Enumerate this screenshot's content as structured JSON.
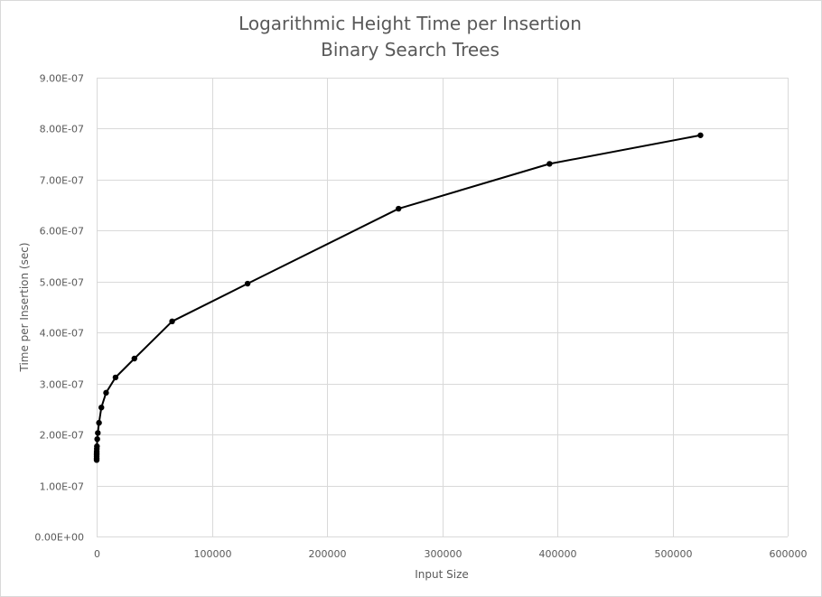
{
  "chart_data": {
    "type": "scatter",
    "title": "Logarithmic Height Time per Insertion",
    "subtitle": "Binary Search Trees",
    "xlabel": "Input Size",
    "ylabel": "Time per Insertion (sec)",
    "xlim": [
      0,
      600000
    ],
    "ylim": [
      0,
      9e-07
    ],
    "x_ticks": [
      {
        "value": 0,
        "label": "0"
      },
      {
        "value": 100000,
        "label": "100000"
      },
      {
        "value": 200000,
        "label": "200000"
      },
      {
        "value": 300000,
        "label": "300000"
      },
      {
        "value": 400000,
        "label": "400000"
      },
      {
        "value": 500000,
        "label": "500000"
      },
      {
        "value": 600000,
        "label": "600000"
      }
    ],
    "y_ticks": [
      {
        "value": 0,
        "label": "0.00E+00"
      },
      {
        "value": 1e-07,
        "label": "1.00E-07"
      },
      {
        "value": 2e-07,
        "label": "2.00E-07"
      },
      {
        "value": 3e-07,
        "label": "3.00E-07"
      },
      {
        "value": 4e-07,
        "label": "4.00E-07"
      },
      {
        "value": 5e-07,
        "label": "5.00E-07"
      },
      {
        "value": 6e-07,
        "label": "6.00E-07"
      },
      {
        "value": 7e-07,
        "label": "7.00E-07"
      },
      {
        "value": 8e-07,
        "label": "8.00E-07"
      },
      {
        "value": 9e-07,
        "label": "9.00E-07"
      }
    ],
    "grid": true,
    "legend": "none",
    "series": [
      {
        "color": "#000000",
        "points": [
          {
            "x": 2,
            "y": 1.5e-07
          },
          {
            "x": 4,
            "y": 1.53e-07
          },
          {
            "x": 8,
            "y": 1.57e-07
          },
          {
            "x": 16,
            "y": 1.6e-07
          },
          {
            "x": 32,
            "y": 1.63e-07
          },
          {
            "x": 64,
            "y": 1.67e-07
          },
          {
            "x": 128,
            "y": 1.72e-07
          },
          {
            "x": 256,
            "y": 1.77e-07
          },
          {
            "x": 512,
            "y": 1.91e-07
          },
          {
            "x": 1024,
            "y": 2.03e-07
          },
          {
            "x": 2048,
            "y": 2.23e-07
          },
          {
            "x": 4096,
            "y": 2.53e-07
          },
          {
            "x": 8192,
            "y": 2.82e-07
          },
          {
            "x": 16384,
            "y": 3.12e-07
          },
          {
            "x": 32768,
            "y": 3.49e-07
          },
          {
            "x": 65536,
            "y": 4.22e-07
          },
          {
            "x": 131072,
            "y": 4.96e-07
          },
          {
            "x": 262144,
            "y": 6.43e-07
          },
          {
            "x": 393216,
            "y": 7.31e-07
          },
          {
            "x": 524288,
            "y": 7.87e-07
          }
        ]
      }
    ]
  }
}
